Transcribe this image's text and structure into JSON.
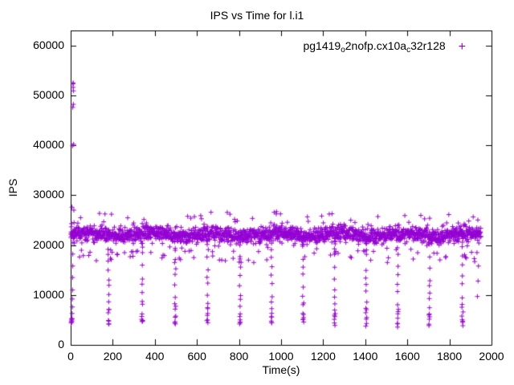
{
  "chart_data": {
    "type": "scatter",
    "title": "IPS vs Time for l.i1",
    "xlabel": "Time(s)",
    "ylabel": "IPS",
    "xlim": [
      0,
      2000
    ],
    "ylim": [
      0,
      63000
    ],
    "xticks": [
      0,
      200,
      400,
      600,
      800,
      1000,
      1200,
      1400,
      1600,
      1800,
      2000
    ],
    "yticks": [
      0,
      10000,
      20000,
      30000,
      40000,
      50000,
      60000
    ],
    "grid": false,
    "marker": {
      "shape": "plus",
      "glyph": "+",
      "color": "#9400D3",
      "size": 7
    },
    "legend": {
      "position": "top-right-inside",
      "entries": [
        {
          "label": "pg1419o2nofp.cx10ac32r128",
          "label_parts": [
            {
              "t": "pg1419",
              "sub": false
            },
            {
              "t": "o",
              "sub": true
            },
            {
              "t": "2nofp.cx10a",
              "sub": false
            },
            {
              "t": "c",
              "sub": true
            },
            {
              "t": "32r128",
              "sub": false
            }
          ],
          "marker": "plus",
          "color": "#9400D3"
        }
      ]
    },
    "series": [
      {
        "name": "pg1419o2nofp.cx10ac32r128",
        "description": "Steady insert-rate band near 22000 IPS over 0-1950s, initial spike to ~52500 IPS at start, periodic vertical dip streaks down to ~4000 IPS roughly every 155s",
        "generator": {
          "seed": 1419,
          "band": {
            "t_start": 0,
            "t_end": 1950,
            "step": 1,
            "mean": 22100,
            "sd": 750,
            "wobble": 300,
            "wobble_period": 300,
            "low_tail_prob": 0.045,
            "low_tail_min": 16500,
            "high_tail_prob": 0.02
          },
          "initial_spike_points": [
            [
              2,
              4400
            ],
            [
              3,
              4700
            ],
            [
              4,
              5000
            ],
            [
              5,
              4500
            ],
            [
              5,
              5300
            ],
            [
              6,
              4800
            ],
            [
              7,
              5200
            ],
            [
              7,
              6300
            ],
            [
              8,
              7600
            ],
            [
              8,
              9200
            ],
            [
              9,
              11000
            ],
            [
              9,
              13500
            ],
            [
              10,
              15800
            ],
            [
              10,
              18200
            ],
            [
              11,
              20500
            ],
            [
              6,
              27600
            ],
            [
              9,
              39900
            ],
            [
              10,
              47600
            ],
            [
              11,
              52300
            ],
            [
              12,
              52500
            ],
            [
              12,
              51600
            ],
            [
              13,
              50900
            ],
            [
              13,
              48200
            ],
            [
              14,
              40200
            ],
            [
              15,
              27000
            ],
            [
              16,
              24500
            ],
            [
              18,
              23200
            ],
            [
              20,
              22600
            ]
          ],
          "dips": {
            "centers": [
              180,
              340,
              497,
              650,
              805,
              955,
              1105,
              1255,
              1405,
              1555,
              1705,
              1862
            ],
            "values": [
              4100,
              4500,
              4900,
              5300,
              5900,
              6600,
              7500,
              8700,
              10100,
              11700,
              13500,
              15600,
              17800,
              19600,
              20800
            ],
            "t_jitter": 3,
            "v_jitter": 700
          },
          "extra_points": [
            [
              1931,
              18500
            ],
            [
              1933,
              9700
            ],
            [
              1936,
              12800
            ],
            [
              1938,
              15800
            ],
            [
              1940,
              20400
            ]
          ]
        }
      }
    ]
  }
}
